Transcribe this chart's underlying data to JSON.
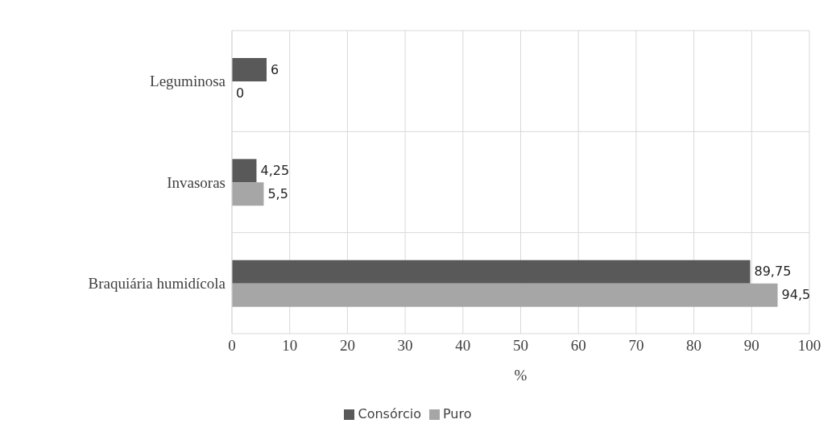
{
  "chart_data": {
    "type": "bar",
    "orientation": "horizontal",
    "categories": [
      "Leguminosa",
      "Invasoras",
      "Braquiária humidícola"
    ],
    "series": [
      {
        "name": "Consórcio",
        "color": "#595959",
        "values": [
          6,
          4.25,
          89.75
        ],
        "value_labels": [
          "6",
          "4,25",
          "89,75"
        ]
      },
      {
        "name": "Puro",
        "color": "#a6a6a6",
        "values": [
          0,
          5.5,
          94.5
        ],
        "value_labels": [
          "0",
          "5,5",
          "94,5"
        ]
      }
    ],
    "xlim": [
      0,
      100
    ],
    "xticks": [
      0,
      10,
      20,
      30,
      40,
      50,
      60,
      70,
      80,
      90,
      100
    ],
    "xlabel": "%",
    "grid": true,
    "legend": "bottom"
  }
}
